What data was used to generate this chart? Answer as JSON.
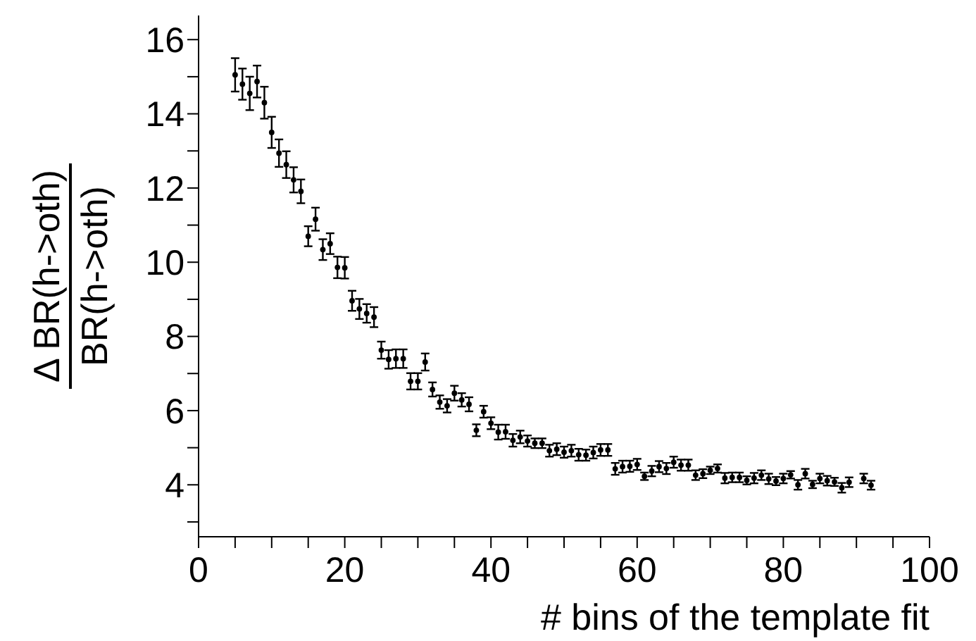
{
  "chart_data": {
    "type": "scatter",
    "xlabel": "# bins of the template fit",
    "ylabel": "Δ BR(h->oth)\nBR(h->oth)",
    "x": [
      5,
      6,
      7,
      8,
      9,
      10,
      11,
      12,
      13,
      14,
      15,
      16,
      17,
      18,
      19,
      20,
      21,
      22,
      23,
      24,
      25,
      26,
      27,
      28,
      29,
      30,
      31,
      32,
      33,
      34,
      35,
      36,
      37,
      38,
      39,
      40,
      41,
      42,
      43,
      44,
      45,
      46,
      47,
      48,
      49,
      50,
      51,
      52,
      53,
      54,
      55,
      56,
      57,
      58,
      59,
      60,
      61,
      62,
      63,
      64,
      65,
      66,
      67,
      68,
      69,
      70,
      71,
      72,
      73,
      74,
      75,
      76,
      77,
      78,
      79,
      80,
      81,
      82,
      83,
      84,
      85,
      86,
      87,
      88,
      89,
      91,
      92
    ],
    "series": [
      {
        "color": "#000000",
        "values": [
          15.05,
          14.8,
          14.55,
          14.87,
          14.3,
          13.5,
          12.94,
          12.63,
          12.22,
          11.91,
          10.7,
          11.16,
          10.34,
          10.5,
          9.86,
          9.85,
          8.96,
          8.74,
          8.62,
          8.52,
          7.63,
          7.38,
          7.4,
          7.4,
          6.79,
          6.79,
          7.31,
          6.57,
          6.23,
          6.13,
          6.47,
          6.29,
          6.17,
          5.47,
          5.97,
          5.66,
          5.42,
          5.43,
          5.2,
          5.29,
          5.18,
          5.12,
          5.12,
          4.92,
          4.96,
          4.88,
          4.92,
          4.81,
          4.8,
          4.87,
          4.94,
          4.94,
          4.43,
          4.49,
          4.5,
          4.55,
          4.23,
          4.37,
          4.49,
          4.44,
          4.61,
          4.53,
          4.53,
          4.26,
          4.3,
          4.39,
          4.44,
          4.18,
          4.2,
          4.2,
          4.12,
          4.18,
          4.26,
          4.16,
          4.1,
          4.17,
          4.27,
          4.0,
          4.3,
          4.01,
          4.17,
          4.11,
          4.08,
          3.92,
          4.07,
          4.17,
          3.99
        ],
        "errors": [
          0.45,
          0.42,
          0.45,
          0.43,
          0.43,
          0.42,
          0.37,
          0.36,
          0.34,
          0.32,
          0.27,
          0.31,
          0.28,
          0.28,
          0.29,
          0.29,
          0.27,
          0.27,
          0.25,
          0.27,
          0.23,
          0.25,
          0.25,
          0.25,
          0.22,
          0.22,
          0.23,
          0.19,
          0.18,
          0.18,
          0.2,
          0.18,
          0.19,
          0.16,
          0.16,
          0.16,
          0.2,
          0.19,
          0.17,
          0.17,
          0.15,
          0.13,
          0.13,
          0.16,
          0.16,
          0.15,
          0.16,
          0.16,
          0.15,
          0.16,
          0.16,
          0.16,
          0.16,
          0.16,
          0.15,
          0.15,
          0.1,
          0.14,
          0.15,
          0.15,
          0.15,
          0.15,
          0.15,
          0.13,
          0.12,
          0.1,
          0.11,
          0.14,
          0.13,
          0.13,
          0.11,
          0.14,
          0.13,
          0.14,
          0.11,
          0.13,
          0.1,
          0.13,
          0.13,
          0.1,
          0.13,
          0.13,
          0.11,
          0.13,
          0.13,
          0.13,
          0.12
        ]
      }
    ],
    "xlim": [
      0,
      100
    ],
    "xticks": [
      0,
      {
        "value": 5,
        "label": null
      },
      {
        "value": 10,
        "label": null
      },
      {
        "value": 15,
        "label": null
      },
      20,
      {
        "value": 25,
        "label": null
      },
      {
        "value": 30,
        "label": null
      },
      {
        "value": 35,
        "label": null
      },
      40,
      {
        "value": 45,
        "label": null
      },
      {
        "value": 50,
        "label": null
      },
      {
        "value": 55,
        "label": null
      },
      60,
      {
        "value": 65,
        "label": null
      },
      {
        "value": 70,
        "label": null
      },
      {
        "value": 75,
        "label": null
      },
      80,
      {
        "value": 85,
        "label": null
      },
      {
        "value": 90,
        "label": null
      },
      {
        "value": 95,
        "label": null
      },
      100
    ],
    "ylim": [
      2.6,
      16.65
    ],
    "yticks": [
      {
        "value": 3,
        "label": null
      },
      4,
      {
        "value": 5,
        "label": null
      },
      6,
      {
        "value": 7,
        "label": null
      },
      8,
      {
        "value": 9,
        "label": null
      },
      10,
      {
        "value": 11,
        "label": null
      },
      12,
      {
        "value": 13,
        "label": null
      },
      14,
      {
        "value": 15,
        "label": null
      },
      16
    ],
    "marker": "circle",
    "grid": false
  }
}
